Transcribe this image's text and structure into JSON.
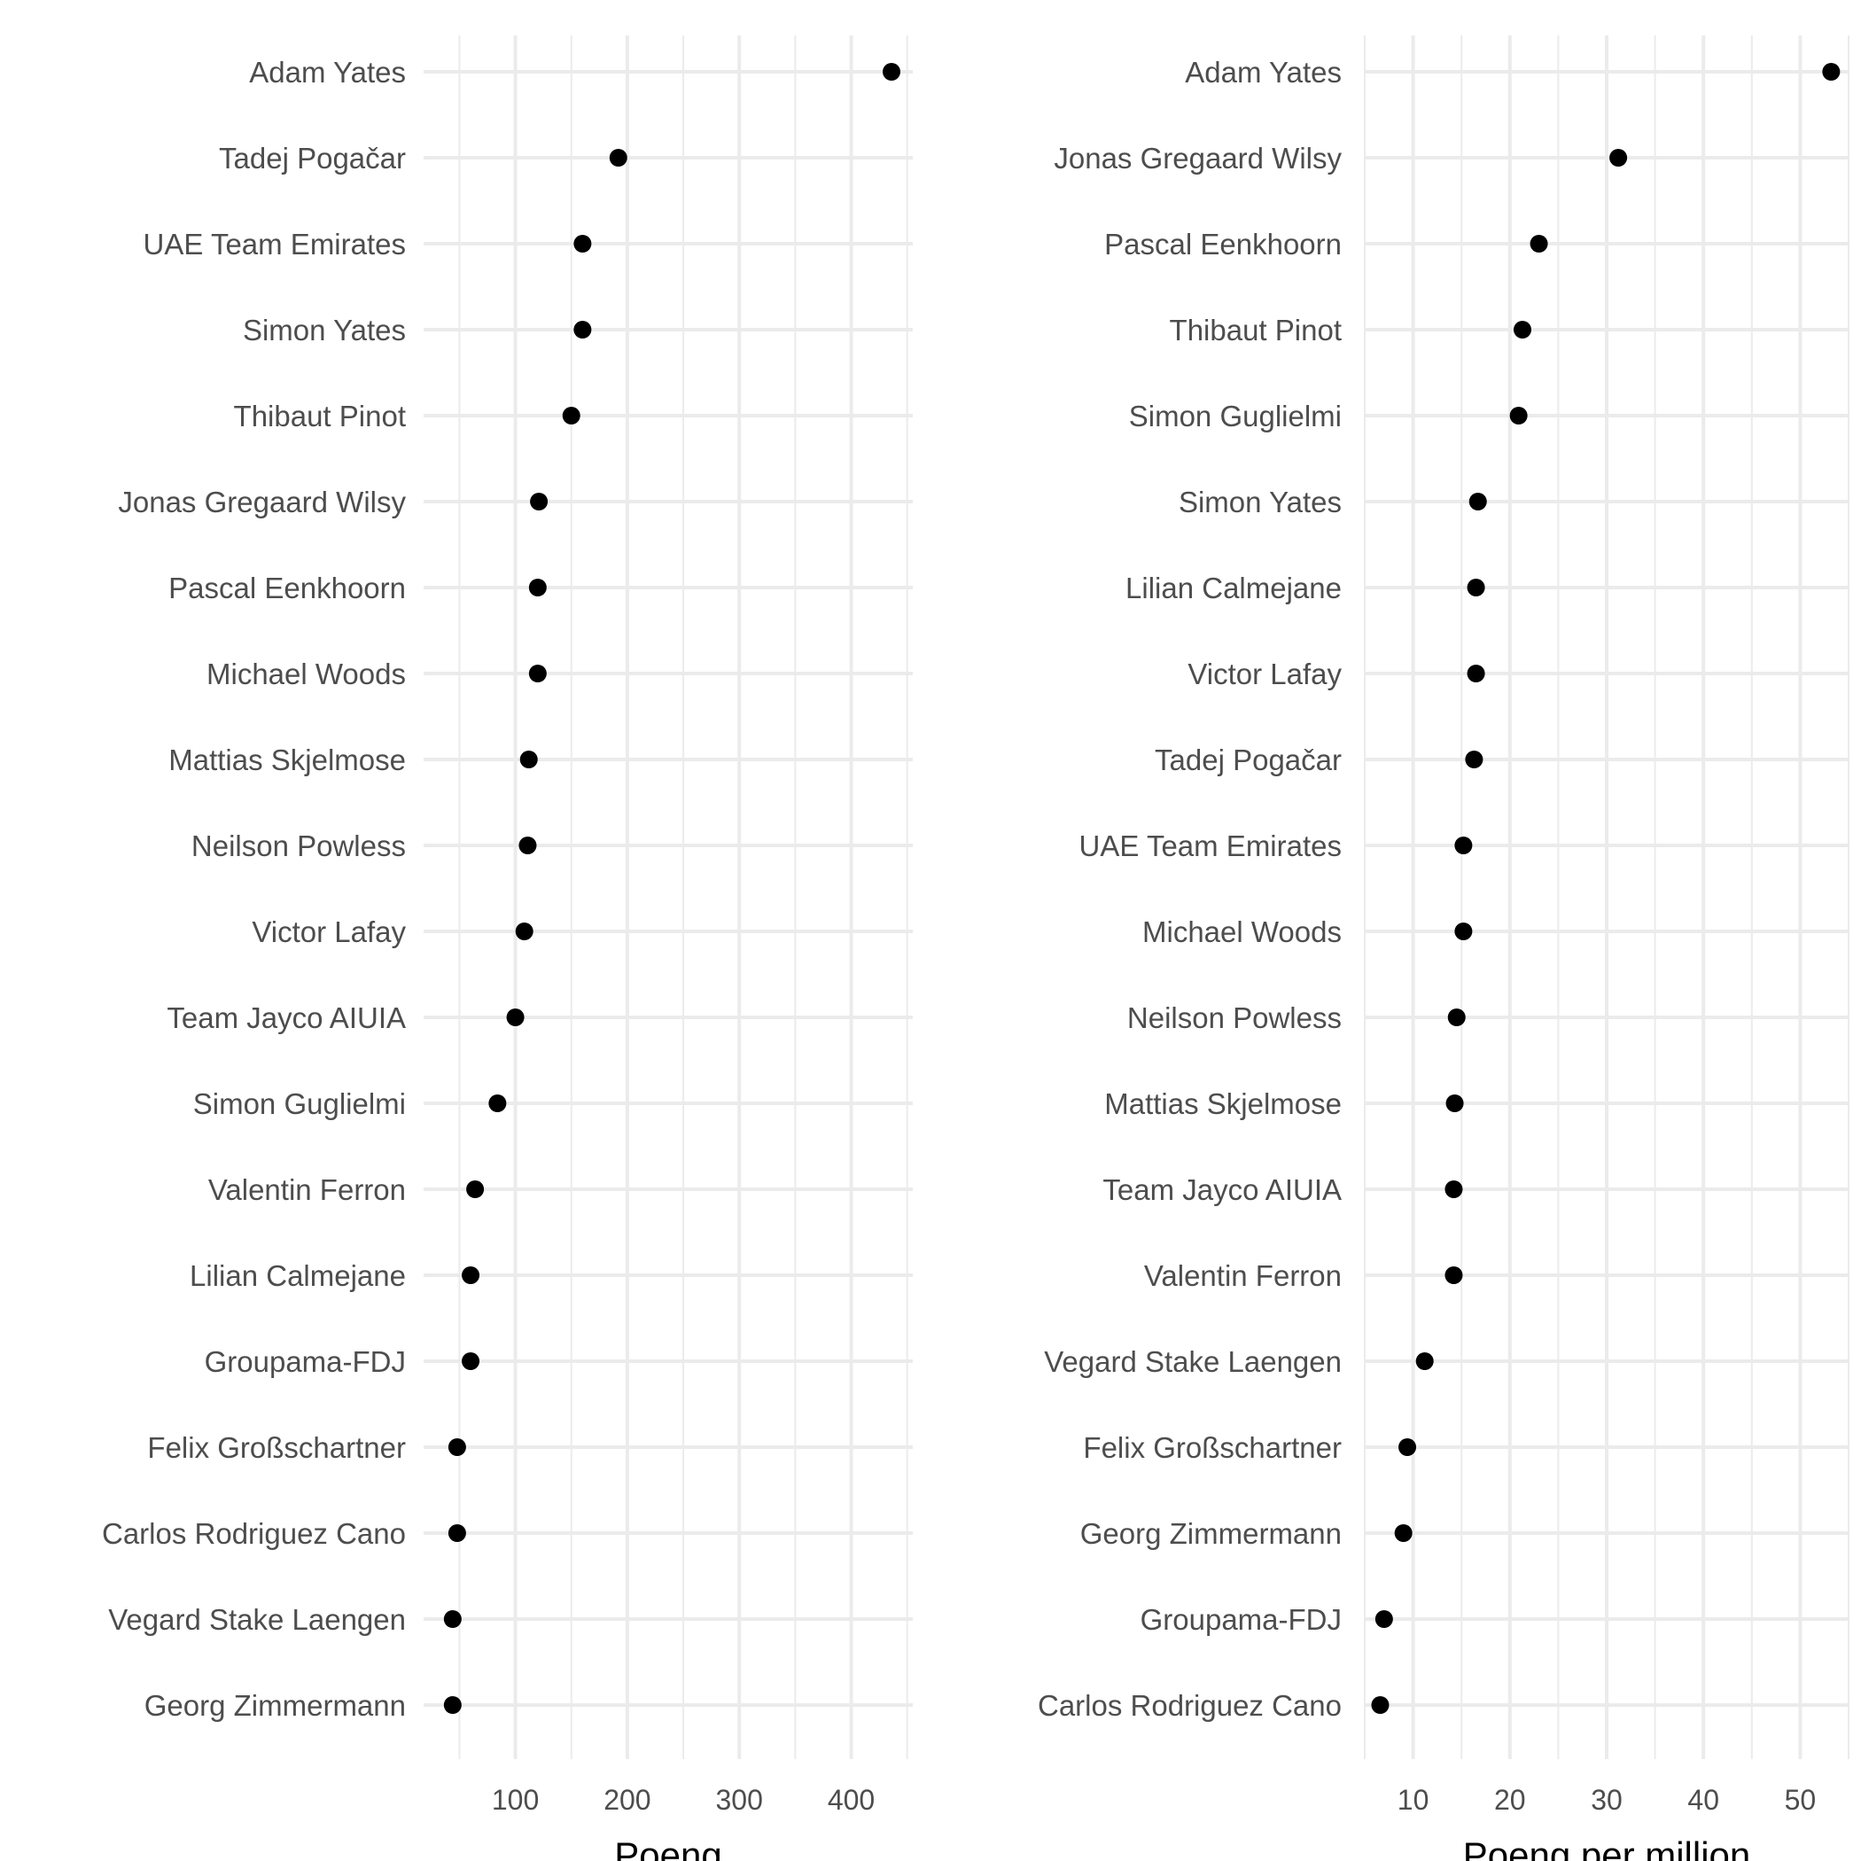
{
  "chart_data": [
    {
      "type": "scatter",
      "title": "",
      "xlabel": "Poeng",
      "ylabel": "",
      "x_scale": "linear",
      "xlim": [
        18,
        455
      ],
      "x_ticks": [
        100,
        200,
        300,
        400
      ],
      "grid": true,
      "legend": "none",
      "categories": [
        "Adam Yates",
        "Tadej Pogačar",
        "UAE Team Emirates",
        "Simon Yates",
        "Thibaut Pinot",
        "Jonas Gregaard Wilsy",
        "Pascal Eenkhoorn",
        "Michael Woods",
        "Mattias Skjelmose",
        "Neilson Powless",
        "Victor Lafay",
        "Team Jayco AIUIA",
        "Simon Guglielmi",
        "Valentin Ferron",
        "Lilian Calmejane",
        "Groupama-FDJ",
        "Felix Großschartner",
        "Carlos Rodriguez Cano",
        "Vegard Stake Laengen",
        "Georg Zimmermann"
      ],
      "values": [
        436,
        192,
        160,
        160,
        150,
        121,
        120,
        120,
        112,
        111,
        108,
        100,
        84,
        64,
        60,
        60,
        48,
        48,
        44,
        44
      ]
    },
    {
      "type": "scatter",
      "title": "",
      "xlabel": "Poeng per million",
      "ylabel": "",
      "x_scale": "linear",
      "xlim": [
        5,
        55
      ],
      "x_ticks": [
        10,
        20,
        30,
        40,
        50
      ],
      "grid": true,
      "legend": "none",
      "categories": [
        "Adam Yates",
        "Jonas Gregaard Wilsy",
        "Pascal Eenkhoorn",
        "Thibaut Pinot",
        "Simon Guglielmi",
        "Simon Yates",
        "Lilian Calmejane",
        "Victor Lafay",
        "Tadej Pogačar",
        "UAE Team Emirates",
        "Michael Woods",
        "Neilson Powless",
        "Mattias Skjelmose",
        "Team Jayco AIUIA",
        "Valentin Ferron",
        "Vegard Stake Laengen",
        "Felix Großschartner",
        "Georg Zimmermann",
        "Groupama-FDJ",
        "Carlos Rodriguez Cano"
      ],
      "values": [
        53.2,
        31.2,
        23.0,
        21.3,
        20.9,
        16.7,
        16.5,
        16.5,
        16.3,
        15.2,
        15.2,
        14.5,
        14.3,
        14.2,
        14.2,
        11.2,
        9.4,
        9.0,
        7.0,
        6.6
      ]
    }
  ]
}
